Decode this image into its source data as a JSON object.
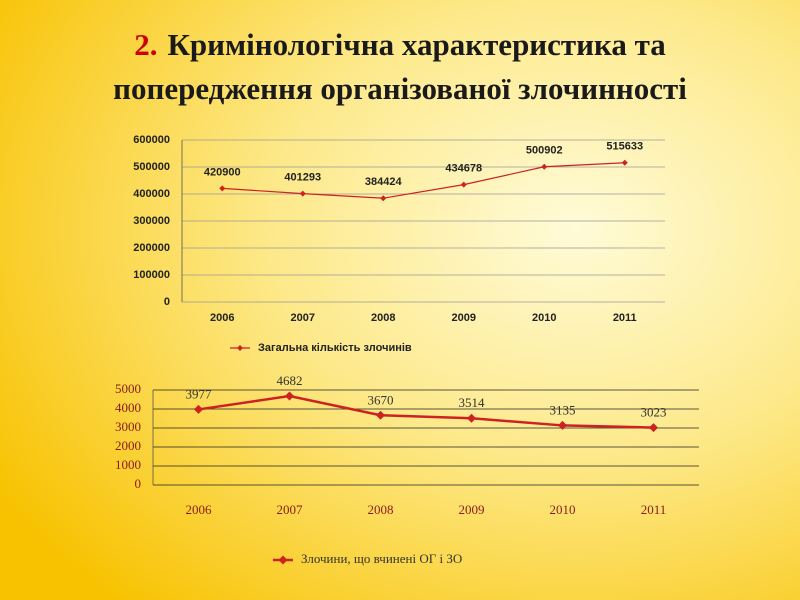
{
  "slide": {
    "number": "2.",
    "title_lines": [
      "Кримінологічна характеристика та",
      "попередження організованої злочинності"
    ]
  },
  "chart_data": [
    {
      "type": "line",
      "categories": [
        "2006",
        "2007",
        "2008",
        "2009",
        "2010",
        "2011"
      ],
      "series": [
        {
          "name": "Загальна кількість злочинів",
          "color": "#cc2222",
          "values": [
            420900,
            401293,
            384424,
            434678,
            500902,
            515633
          ]
        }
      ],
      "ylim": [
        0,
        600000
      ],
      "yticks": [
        0,
        100000,
        200000,
        300000,
        400000,
        500000,
        600000
      ],
      "grid": true,
      "legend": "bottom"
    },
    {
      "type": "line",
      "categories": [
        "2006",
        "2007",
        "2008",
        "2009",
        "2010",
        "2011"
      ],
      "series": [
        {
          "name": "Злочини, що вчинені ОГ і ЗО",
          "color": "#cc2222",
          "values": [
            3977,
            4682,
            3670,
            3514,
            3135,
            3023
          ]
        }
      ],
      "ylim": [
        0,
        5000
      ],
      "yticks": [
        0,
        1000,
        2000,
        3000,
        4000,
        5000
      ],
      "grid": true,
      "legend": "bottom"
    }
  ]
}
